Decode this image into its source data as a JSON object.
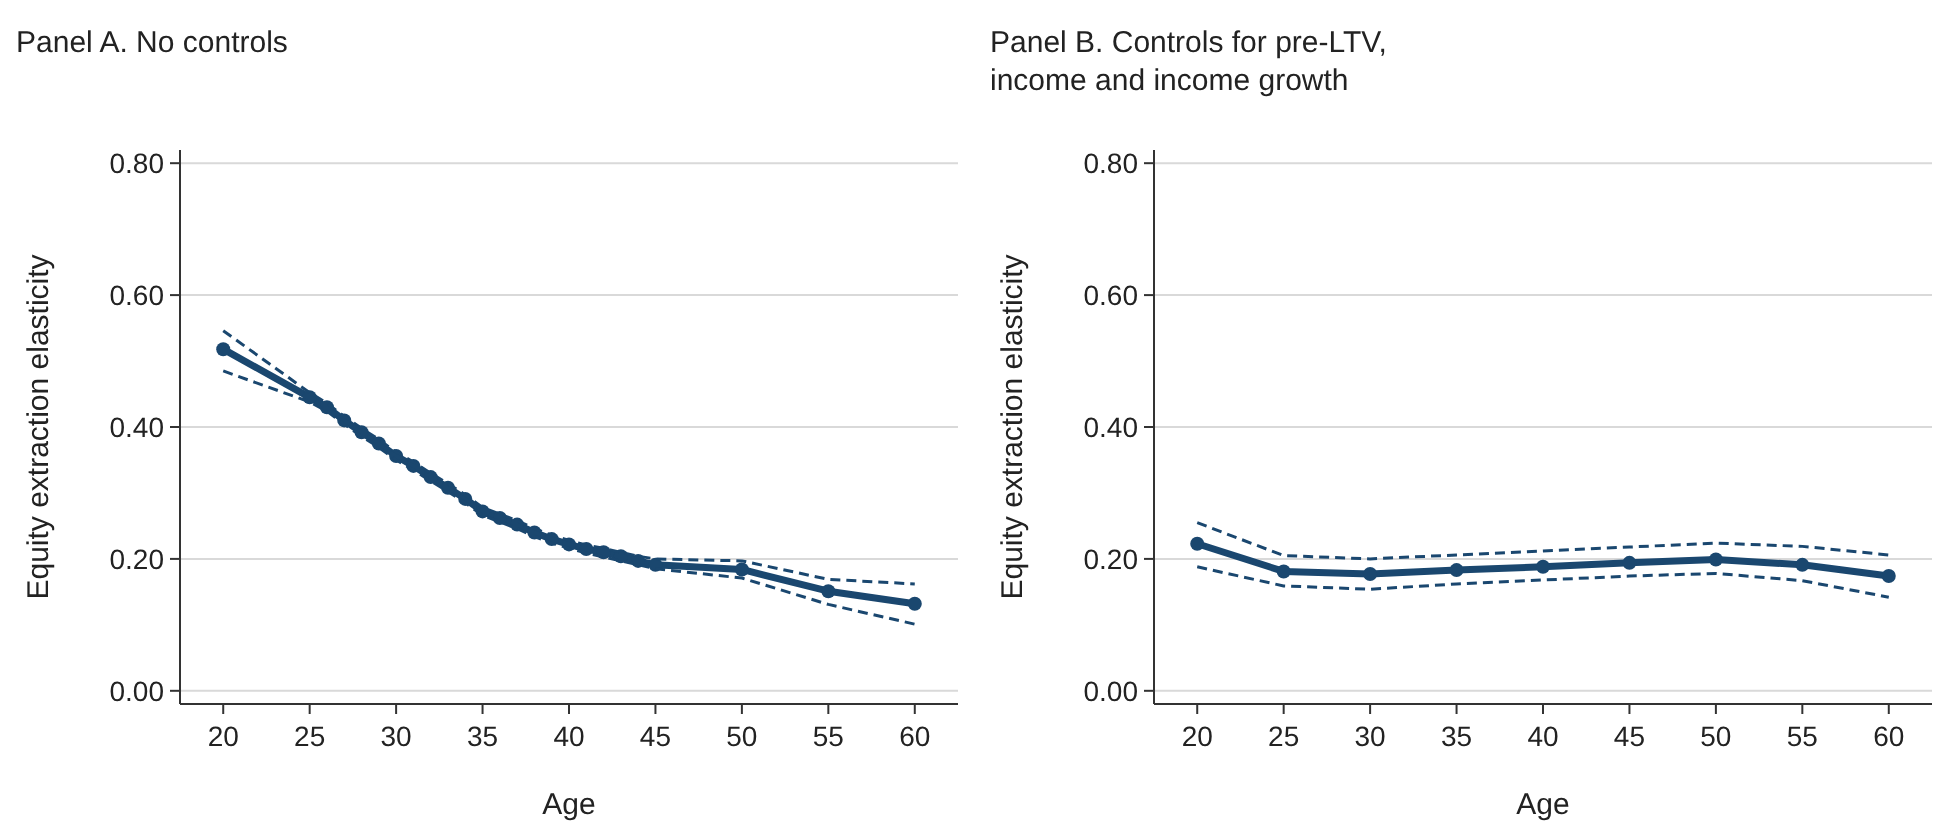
{
  "chart_data": [
    {
      "type": "line",
      "title": "Panel A. No controls",
      "xlabel": "Age",
      "ylabel": "Equity extraction elasticity",
      "xlim": [
        17.5,
        62.5
      ],
      "xticks": [
        20,
        25,
        30,
        35,
        40,
        45,
        50,
        55,
        60
      ],
      "ylim": [
        -0.02,
        0.82
      ],
      "yticks": [
        {
          "value": 0,
          "label": "0.00"
        },
        {
          "value": 0.2,
          "label": "0.20"
        },
        {
          "value": 0.4,
          "label": "0.40"
        },
        {
          "value": 0.6,
          "label": "0.60"
        },
        {
          "value": 0.8,
          "label": "0.80"
        }
      ],
      "grid": "y",
      "marker": "circle",
      "line_style": "solid",
      "series": [
        {
          "color": "#1a476f",
          "x": [
            20,
            25,
            26,
            27,
            28,
            29,
            30,
            31,
            32,
            33,
            34,
            35,
            36,
            37,
            38,
            39,
            40,
            41,
            42,
            43,
            44,
            45,
            50,
            55,
            60
          ],
          "values": [
            0.518,
            0.445,
            0.43,
            0.41,
            0.392,
            0.375,
            0.356,
            0.341,
            0.324,
            0.308,
            0.291,
            0.272,
            0.262,
            0.252,
            0.24,
            0.23,
            0.222,
            0.215,
            0.21,
            0.204,
            0.197,
            0.191,
            0.184,
            0.151,
            0.132
          ]
        },
        {
          "color": "#1a476f",
          "marker": "none",
          "line_style": "dashed",
          "x": [
            20,
            25,
            26,
            27,
            28,
            29,
            30,
            31,
            32,
            33,
            34,
            35,
            36,
            37,
            38,
            39,
            40,
            41,
            42,
            43,
            44,
            45,
            50,
            55,
            60
          ],
          "values": [
            0.485,
            0.438,
            0.424,
            0.404,
            0.386,
            0.369,
            0.35,
            0.335,
            0.318,
            0.302,
            0.285,
            0.266,
            0.256,
            0.246,
            0.234,
            0.224,
            0.216,
            0.209,
            0.203,
            0.197,
            0.191,
            0.185,
            0.171,
            0.131,
            0.101
          ]
        },
        {
          "color": "#1a476f",
          "marker": "none",
          "line_style": "dashed",
          "x": [
            20,
            25,
            26,
            27,
            28,
            29,
            30,
            31,
            32,
            33,
            34,
            35,
            36,
            37,
            38,
            39,
            40,
            41,
            42,
            43,
            44,
            45,
            50,
            55,
            60
          ],
          "values": [
            0.546,
            0.452,
            0.436,
            0.416,
            0.398,
            0.381,
            0.362,
            0.347,
            0.33,
            0.314,
            0.297,
            0.278,
            0.268,
            0.258,
            0.246,
            0.236,
            0.228,
            0.221,
            0.216,
            0.21,
            0.204,
            0.2,
            0.197,
            0.169,
            0.162
          ]
        }
      ]
    },
    {
      "type": "line",
      "title": "Panel B. Controls for pre-LTV, income and income growth",
      "xlabel": "Age",
      "ylabel": "Equity extraction elasticity",
      "xlim": [
        17.5,
        62.5
      ],
      "xticks": [
        20,
        25,
        30,
        35,
        40,
        45,
        50,
        55,
        60
      ],
      "ylim": [
        -0.02,
        0.82
      ],
      "yticks": [
        {
          "value": 0,
          "label": "0.00"
        },
        {
          "value": 0.2,
          "label": "0.20"
        },
        {
          "value": 0.4,
          "label": "0.40"
        },
        {
          "value": 0.6,
          "label": "0.60"
        },
        {
          "value": 0.8,
          "label": "0.80"
        }
      ],
      "grid": "y",
      "marker": "circle",
      "line_style": "solid",
      "series": [
        {
          "color": "#1a476f",
          "x": [
            20,
            25,
            30,
            35,
            40,
            45,
            50,
            55,
            60
          ],
          "values": [
            0.223,
            0.181,
            0.177,
            0.183,
            0.188,
            0.194,
            0.199,
            0.191,
            0.174
          ]
        },
        {
          "color": "#1a476f",
          "marker": "none",
          "line_style": "dashed",
          "x": [
            20,
            25,
            30,
            35,
            40,
            45,
            50,
            55,
            60
          ],
          "values": [
            0.188,
            0.159,
            0.154,
            0.162,
            0.168,
            0.174,
            0.178,
            0.167,
            0.142
          ]
        },
        {
          "color": "#1a476f",
          "marker": "none",
          "line_style": "dashed",
          "x": [
            20,
            25,
            30,
            35,
            40,
            45,
            50,
            55,
            60
          ],
          "values": [
            0.255,
            0.205,
            0.2,
            0.206,
            0.212,
            0.218,
            0.224,
            0.219,
            0.206
          ]
        }
      ]
    }
  ]
}
